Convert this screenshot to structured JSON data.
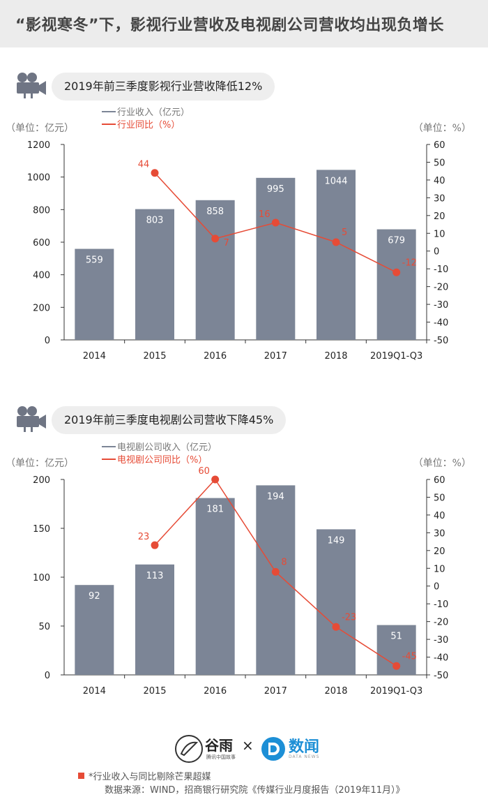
{
  "header": {
    "title": "“影视寒冬”下，影视行业营收及电视剧公司营收均出现负增长"
  },
  "colors": {
    "bar": "#7c8596",
    "line": "#e64b36",
    "axis": "#333333",
    "label_bg": "#eeeeee"
  },
  "icons": {
    "panel": "movie-camera-icon"
  },
  "chart_data": [
    {
      "type": "bar",
      "title": "2019年前三季度影视行业营收降低12%",
      "categories": [
        "2014",
        "2015",
        "2016",
        "2017",
        "2018",
        "2019Q1-Q3"
      ],
      "series": [
        {
          "name": "行业收入（亿元）",
          "type": "bar",
          "values": [
            559,
            803,
            858,
            995,
            1044,
            679
          ],
          "labels": [
            "559",
            "803",
            "858",
            "995",
            "1044",
            "679"
          ]
        },
        {
          "name": "行业同比（%）",
          "type": "line",
          "axis": "right",
          "values": [
            null,
            44,
            7,
            16,
            5,
            -12
          ],
          "labels": [
            "",
            "44",
            "7",
            "16",
            "5",
            "-12"
          ]
        }
      ],
      "ylabel": "（单位：亿元）",
      "y2label": "（单位：%）",
      "ylim": [
        0,
        1200
      ],
      "yticks": [
        "0",
        "200",
        "400",
        "600",
        "800",
        "1000",
        "1200"
      ],
      "y2lim": [
        -50,
        60
      ],
      "y2ticks": [
        "-50",
        "-40",
        "-30",
        "-20",
        "-10",
        "0",
        "10",
        "20",
        "30",
        "40",
        "50",
        "60"
      ],
      "legend": "top-left"
    },
    {
      "type": "bar",
      "title": "2019年前三季度电视剧公司营收下降45%",
      "categories": [
        "2014",
        "2015",
        "2016",
        "2017",
        "2018",
        "2019Q1-Q3"
      ],
      "series": [
        {
          "name": "电视剧公司收入（亿元）",
          "type": "bar",
          "values": [
            92,
            113,
            181,
            194,
            149,
            51
          ],
          "labels": [
            "92",
            "113",
            "181",
            "194",
            "149",
            "51"
          ]
        },
        {
          "name": "电视剧公司同比（%）",
          "type": "line",
          "axis": "right",
          "values": [
            null,
            23,
            60,
            8,
            -23,
            -45
          ],
          "labels": [
            "",
            "23",
            "60",
            "8",
            "-23",
            "-45"
          ]
        }
      ],
      "ylabel": "（单位：亿元）",
      "y2label": "（单位：%）",
      "ylim": [
        0,
        200
      ],
      "yticks": [
        "0",
        "50",
        "100",
        "150",
        "200"
      ],
      "y2lim": [
        -50,
        60
      ],
      "y2ticks": [
        "-50",
        "-40",
        "-30",
        "-20",
        "-10",
        "0",
        "10",
        "20",
        "30",
        "40",
        "50",
        "60"
      ],
      "legend": "top-left"
    }
  ],
  "footer": {
    "brand_left": "谷雨",
    "brand_left_sub": "腾讯中国故事",
    "times": "×",
    "brand_right": "数闻",
    "brand_right_sub": "DATA NEWS",
    "note": "*行业收入与同比剔除芒果超媒",
    "source": "数据来源：WIND，招商银行研究院《传媒行业月度报告（2019年11月）》"
  }
}
